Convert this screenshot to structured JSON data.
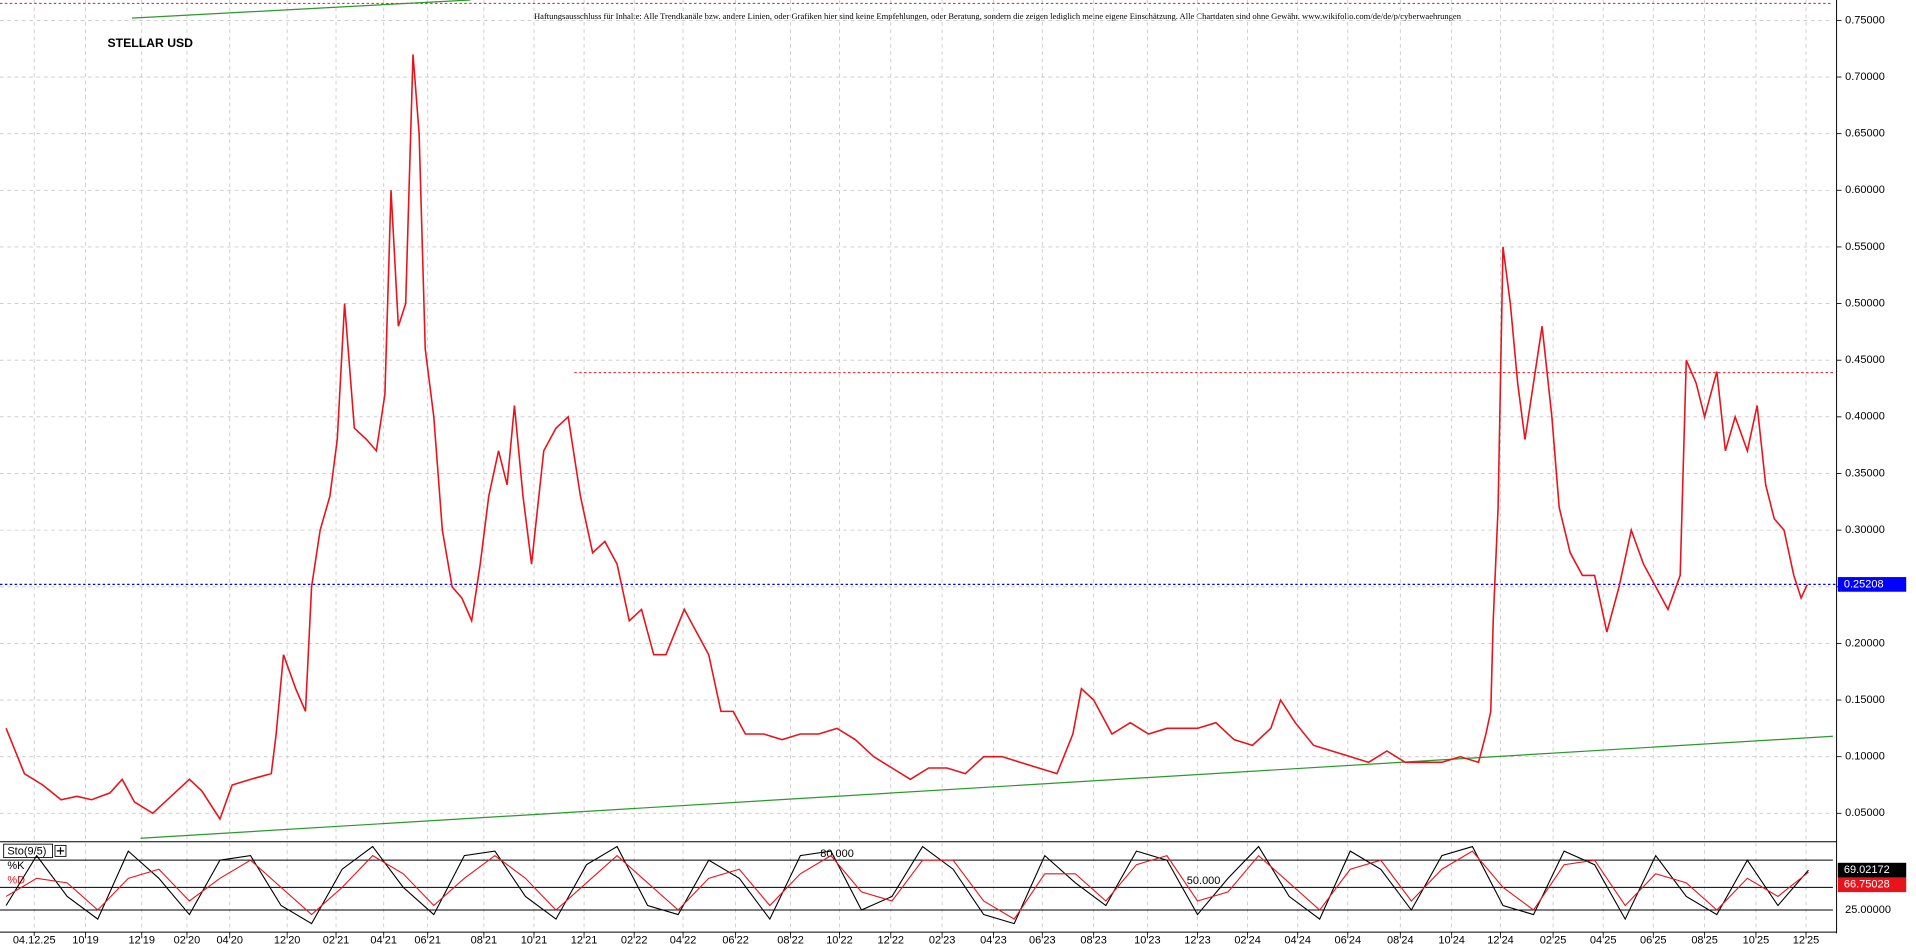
{
  "chart_data": [
    {
      "type": "line",
      "title": "STELLAR USD",
      "note": "Haftungsausschluss für Inhalte: Alle Trendkanäle bzw. andere Linien, oder Grafiken hier sind keine Empfehlungen, oder Beratung, sondern die zeigen lediglich meine eigene Einschätzung. Alle Chartdaten sind ohne Gewähr. www.wikifolio.com/de/de/p/cyberwaehrungen",
      "x": [
        5,
        20,
        35,
        50,
        63,
        75,
        90,
        100,
        110,
        125,
        140,
        155,
        165,
        180,
        190,
        205,
        222,
        226,
        232,
        242,
        250,
        255,
        262,
        270,
        276,
        282,
        290,
        300,
        308,
        315,
        320,
        326,
        332,
        338,
        343,
        348,
        355,
        362,
        370,
        378,
        386,
        393,
        400,
        408,
        415,
        421,
        428,
        435,
        445,
        455,
        465,
        475,
        485,
        495,
        505,
        515,
        525,
        535,
        545,
        560,
        570,
        580,
        590,
        600,
        610,
        625,
        640,
        655,
        670,
        685,
        700,
        715,
        730,
        745,
        760,
        775,
        790,
        805,
        820,
        835,
        850,
        865,
        878,
        885,
        895,
        910,
        925,
        940,
        955,
        965,
        980,
        995,
        1010,
        1025,
        1040,
        1048,
        1060,
        1075,
        1090,
        1105,
        1120,
        1135,
        1150,
        1165,
        1180,
        1195,
        1210,
        1216,
        1220,
        1222,
        1226,
        1230,
        1236,
        1242,
        1248,
        1255,
        1262,
        1270,
        1276,
        1285,
        1295,
        1305,
        1315,
        1325,
        1335,
        1345,
        1355,
        1365,
        1375,
        1380,
        1388,
        1395,
        1405,
        1412,
        1420,
        1430,
        1438,
        1445,
        1452,
        1460,
        1468,
        1474,
        1479
      ],
      "series": [
        {
          "color": "#e8141c",
          "values": [
            0.125,
            0.085,
            0.075,
            0.062,
            0.065,
            0.062,
            0.068,
            0.08,
            0.06,
            0.05,
            0.065,
            0.08,
            0.07,
            0.045,
            0.075,
            0.08,
            0.085,
            0.12,
            0.19,
            0.16,
            0.14,
            0.25,
            0.3,
            0.33,
            0.38,
            0.5,
            0.39,
            0.38,
            0.37,
            0.42,
            0.6,
            0.48,
            0.5,
            0.72,
            0.65,
            0.46,
            0.4,
            0.3,
            0.25,
            0.24,
            0.22,
            0.27,
            0.33,
            0.37,
            0.34,
            0.41,
            0.33,
            0.27,
            0.37,
            0.39,
            0.4,
            0.33,
            0.28,
            0.29,
            0.27,
            0.22,
            0.23,
            0.19,
            0.19,
            0.23,
            0.21,
            0.19,
            0.14,
            0.14,
            0.12,
            0.12,
            0.115,
            0.12,
            0.12,
            0.125,
            0.115,
            0.1,
            0.09,
            0.08,
            0.09,
            0.09,
            0.085,
            0.1,
            0.1,
            0.095,
            0.09,
            0.085,
            0.12,
            0.16,
            0.15,
            0.12,
            0.13,
            0.12,
            0.125,
            0.125,
            0.125,
            0.13,
            0.115,
            0.11,
            0.125,
            0.15,
            0.13,
            0.11,
            0.105,
            0.1,
            0.095,
            0.105,
            0.095,
            0.095,
            0.095,
            0.1,
            0.095,
            0.12,
            0.14,
            0.22,
            0.32,
            0.55,
            0.5,
            0.43,
            0.38,
            0.43,
            0.48,
            0.4,
            0.32,
            0.28,
            0.26,
            0.26,
            0.21,
            0.25,
            0.3,
            0.27,
            0.25,
            0.23,
            0.26,
            0.45,
            0.43,
            0.4,
            0.44,
            0.37,
            0.4,
            0.37,
            0.41,
            0.34,
            0.31,
            0.3,
            0.26,
            0.24,
            0.252
          ]
        }
      ],
      "xlim": [
        0,
        1500
      ],
      "ylim": [
        0.026,
        0.768
      ],
      "yticks": [
        {
          "value": 0.05,
          "label": "0.05000"
        },
        {
          "value": 0.1,
          "label": "0.10000"
        },
        {
          "value": 0.15,
          "label": "0.15000"
        },
        {
          "value": 0.2,
          "label": "0.20000"
        },
        {
          "value": 0.25,
          "label": "0.25000"
        },
        {
          "value": 0.3,
          "label": "0.30000"
        },
        {
          "value": 0.35,
          "label": "0.35000"
        },
        {
          "value": 0.4,
          "label": "0.40000"
        },
        {
          "value": 0.45,
          "label": "0.45000"
        },
        {
          "value": 0.5,
          "label": "0.50000"
        },
        {
          "value": 0.55,
          "label": "0.55000"
        },
        {
          "value": 0.6,
          "label": "0.60000"
        },
        {
          "value": 0.65,
          "label": "0.65000"
        },
        {
          "value": 0.7,
          "label": "0.70000"
        },
        {
          "value": 0.75,
          "label": "0.75000"
        }
      ],
      "xticks": [
        {
          "value": 28,
          "label": "04.12.25"
        },
        {
          "value": 70,
          "label": "10'19"
        },
        {
          "value": 116,
          "label": "12'19"
        },
        {
          "value": 153,
          "label": "02'20"
        },
        {
          "value": 188,
          "label": "04'20"
        },
        {
          "value": 235,
          "label": "12'20"
        },
        {
          "value": 275,
          "label": "02'21"
        },
        {
          "value": 314,
          "label": "04'21"
        },
        {
          "value": 350,
          "label": "06'21"
        },
        {
          "value": 396,
          "label": "08'21"
        },
        {
          "value": 437,
          "label": "10'21"
        },
        {
          "value": 478,
          "label": "12'21"
        },
        {
          "value": 519,
          "label": "02'22"
        },
        {
          "value": 559,
          "label": "04'22"
        },
        {
          "value": 602,
          "label": "06'22"
        },
        {
          "value": 647,
          "label": "08'22"
        },
        {
          "value": 687,
          "label": "10'22"
        },
        {
          "value": 729,
          "label": "12'22"
        },
        {
          "value": 771,
          "label": "02'23"
        },
        {
          "value": 813,
          "label": "04'23"
        },
        {
          "value": 853,
          "label": "06'23"
        },
        {
          "value": 895,
          "label": "08'23"
        },
        {
          "value": 939,
          "label": "10'23"
        },
        {
          "value": 980,
          "label": "12'23"
        },
        {
          "value": 1021,
          "label": "02'24"
        },
        {
          "value": 1062,
          "label": "04'24"
        },
        {
          "value": 1103,
          "label": "06'24"
        },
        {
          "value": 1146,
          "label": "08'24"
        },
        {
          "value": 1188,
          "label": "10'24"
        },
        {
          "value": 1228,
          "label": "12'24"
        },
        {
          "value": 1271,
          "label": "02'25"
        },
        {
          "value": 1312,
          "label": "04'25"
        },
        {
          "value": 1353,
          "label": "06'25"
        },
        {
          "value": 1395,
          "label": "08'25"
        },
        {
          "value": 1437,
          "label": "10'25"
        },
        {
          "value": 1478,
          "label": "12'25"
        }
      ],
      "grid": true,
      "current_price": 0.25208,
      "current_color": "#0000ff",
      "resistance_lines": [
        0.765,
        0.439
      ],
      "resistance_color": "#e8141c",
      "trendlines": [
        {
          "x": [
            115,
            1500
          ],
          "y": [
            0.028,
            0.118
          ]
        },
        {
          "x": [
            108,
            385
          ],
          "y": [
            0.752,
            0.768
          ]
        }
      ],
      "trendline_color": "#2a9a2a"
    },
    {
      "type": "line",
      "title": "Sto(9/5)",
      "x": [
        5,
        30,
        55,
        80,
        105,
        130,
        155,
        180,
        205,
        230,
        255,
        280,
        305,
        330,
        355,
        380,
        405,
        430,
        455,
        480,
        505,
        530,
        555,
        580,
        605,
        630,
        655,
        680,
        705,
        730,
        755,
        780,
        805,
        830,
        855,
        880,
        905,
        930,
        955,
        980,
        1005,
        1030,
        1055,
        1080,
        1105,
        1130,
        1155,
        1180,
        1205,
        1230,
        1255,
        1280,
        1305,
        1330,
        1355,
        1380,
        1405,
        1430,
        1455,
        1480
      ],
      "series": [
        {
          "name": "%K",
          "color": "#000000",
          "last": 69.02172,
          "values": [
            30,
            85,
            40,
            15,
            90,
            60,
            20,
            80,
            85,
            30,
            10,
            70,
            95,
            50,
            20,
            85,
            90,
            40,
            15,
            75,
            95,
            30,
            20,
            80,
            60,
            15,
            85,
            90,
            25,
            40,
            95,
            70,
            20,
            10,
            85,
            55,
            30,
            90,
            80,
            20,
            60,
            95,
            40,
            15,
            90,
            70,
            25,
            85,
            95,
            30,
            20,
            90,
            75,
            15,
            85,
            40,
            20,
            80,
            30,
            69.02
          ]
        },
        {
          "name": "%D",
          "color": "#e8141c",
          "last": 66.75028,
          "values": [
            40,
            60,
            55,
            25,
            60,
            70,
            35,
            60,
            80,
            50,
            20,
            50,
            85,
            65,
            30,
            60,
            85,
            60,
            25,
            55,
            85,
            55,
            25,
            60,
            70,
            30,
            65,
            85,
            45,
            35,
            80,
            80,
            35,
            15,
            65,
            65,
            35,
            75,
            85,
            35,
            45,
            85,
            55,
            25,
            70,
            80,
            35,
            70,
            90,
            50,
            25,
            75,
            80,
            30,
            65,
            55,
            25,
            60,
            40,
            66.75
          ]
        }
      ],
      "xlim": [
        0,
        1500
      ],
      "ylim": [
        2,
        99
      ],
      "yticks": [
        {
          "value": 80,
          "label": "80.000"
        },
        {
          "value": 50,
          "label": "50.000"
        },
        {
          "value": 25,
          "label": "25.00000"
        }
      ]
    }
  ]
}
